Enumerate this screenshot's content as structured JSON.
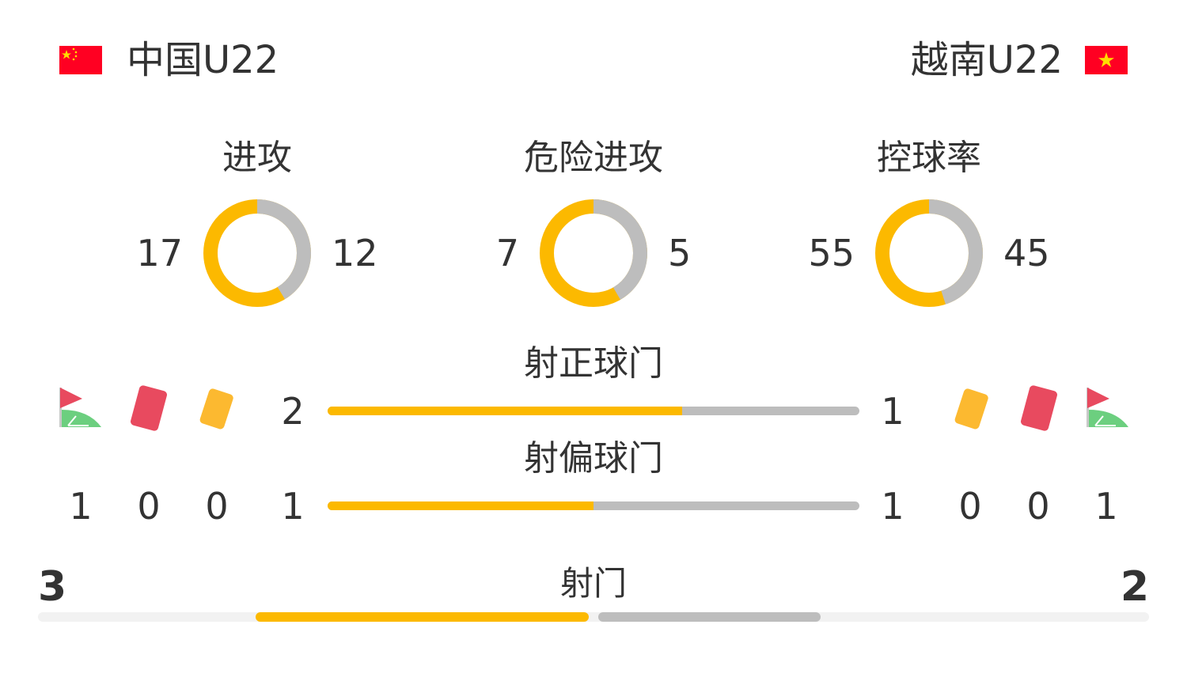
{
  "colors": {
    "home": "#fcb900",
    "away": "#bdbdbd",
    "track": "#f2f2f2",
    "text": "#333333"
  },
  "home": {
    "name": "中国U22",
    "flag": "china-flag"
  },
  "away": {
    "name": "越南U22",
    "flag": "vietnam-flag"
  },
  "donuts": [
    {
      "label": "进攻",
      "home": 17,
      "away": 12,
      "home_text": "17",
      "away_text": "12"
    },
    {
      "label": "危险进攻",
      "home": 7,
      "away": 5,
      "home_text": "7",
      "away_text": "5"
    },
    {
      "label": "控球率",
      "home": 55,
      "away": 45,
      "home_text": "55",
      "away_text": "45"
    }
  ],
  "bars": [
    {
      "label": "射正球门",
      "home": 2,
      "away": 1,
      "home_text": "2",
      "away_text": "1"
    },
    {
      "label": "射偏球门",
      "home": 1,
      "away": 1,
      "home_text": "1",
      "away_text": "1"
    }
  ],
  "home_counts": {
    "corners": "1",
    "red_cards": "0",
    "yellow_cards": "0"
  },
  "away_counts": {
    "corners": "1",
    "red_cards": "0",
    "yellow_cards": "0"
  },
  "shots": {
    "label": "射门",
    "home": 3,
    "away": 2,
    "home_text": "3",
    "away_text": "2"
  }
}
